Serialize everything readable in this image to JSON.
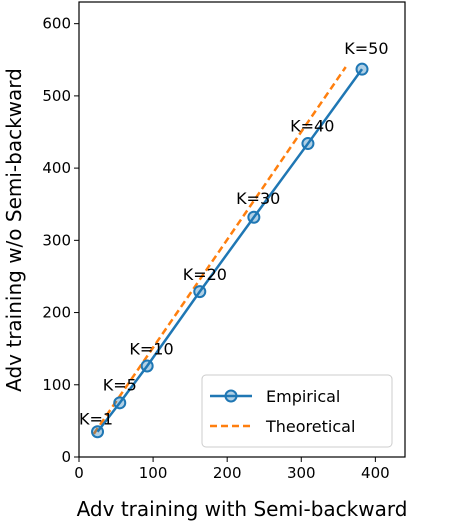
{
  "chart_data": {
    "type": "line",
    "xlabel": "Adv training with Semi-backward",
    "ylabel": "Adv training w/o Semi-backward",
    "xlim": [
      0,
      440
    ],
    "ylim": [
      0,
      630
    ],
    "xticks": [
      0,
      100,
      200,
      300,
      400
    ],
    "yticks": [
      0,
      100,
      200,
      300,
      400,
      500,
      600
    ],
    "grid": false,
    "legend_position": "lower-right",
    "series": [
      {
        "name": "Empirical",
        "style": "solid-with-circle-markers",
        "color": "#1f77b4",
        "x": [
          25,
          55,
          92,
          163,
          236,
          309,
          382
        ],
        "y": [
          35,
          75,
          126,
          229,
          332,
          434,
          537
        ]
      },
      {
        "name": "Theoretical",
        "style": "dashed",
        "color": "#ff7f0e",
        "x": [
          20,
          360
        ],
        "y": [
          32,
          540
        ]
      }
    ],
    "annotations": [
      {
        "text": "K=1",
        "x": 0,
        "y": 45
      },
      {
        "text": "K=5",
        "x": 32,
        "y": 92
      },
      {
        "text": "K=10",
        "x": 68,
        "y": 142
      },
      {
        "text": "K=20",
        "x": 140,
        "y": 245
      },
      {
        "text": "K=30",
        "x": 212,
        "y": 350
      },
      {
        "text": "K=40",
        "x": 285,
        "y": 451
      },
      {
        "text": "K=50",
        "x": 358,
        "y": 558
      }
    ]
  }
}
